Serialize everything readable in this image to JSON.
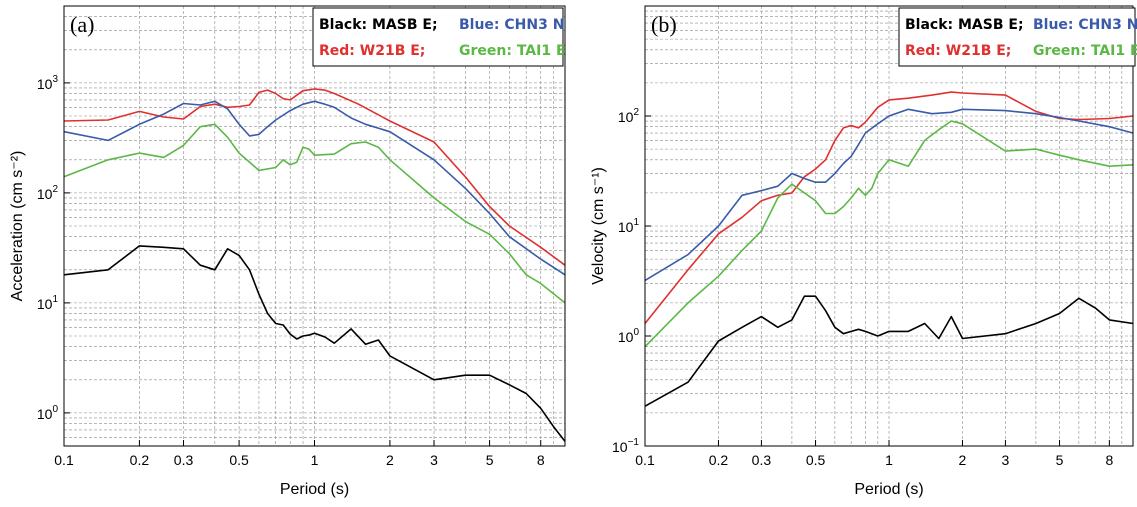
{
  "chart_data": [
    {
      "type": "line",
      "panel": "(a)",
      "xlabel": "Period (s)",
      "ylabel": "Acceleration (cm s⁻²)",
      "x_scale": "log",
      "y_scale": "log",
      "xlim": [
        0.1,
        10
      ],
      "ylim": [
        0.5,
        5000
      ],
      "grid": true,
      "x_ticks": [
        {
          "value": 0.1,
          "label": "0.1"
        },
        {
          "value": 0.2,
          "label": "0.2"
        },
        {
          "value": 0.3,
          "label": "0.3"
        },
        {
          "value": 0.5,
          "label": "0.5"
        },
        {
          "value": 1,
          "label": "1"
        },
        {
          "value": 2,
          "label": "2"
        },
        {
          "value": 3,
          "label": "3"
        },
        {
          "value": 5,
          "label": "5"
        },
        {
          "value": 8,
          "label": "8"
        }
      ],
      "y_ticks": [
        {
          "value": 1,
          "base": "10",
          "exp": "0"
        },
        {
          "value": 10,
          "base": "10",
          "exp": "1"
        },
        {
          "value": 100,
          "base": "10",
          "exp": "2"
        },
        {
          "value": 1000,
          "base": "10",
          "exp": "3"
        }
      ],
      "legend": {
        "placement": "top-right",
        "rows": [
          [
            {
              "text": "Black: MASB E;",
              "color": "#000000"
            },
            {
              "text": "Blue: CHN3 N",
              "color": "#3a5ba9"
            }
          ],
          [
            {
              "text": "Red: W21B E;",
              "color": "#e0302f"
            },
            {
              "text": "Green: TAI1 E",
              "color": "#5cb846"
            }
          ]
        ]
      },
      "series": [
        {
          "color": "#e0302f",
          "points": [
            [
              0.1,
              450
            ],
            [
              0.15,
              460
            ],
            [
              0.2,
              550
            ],
            [
              0.25,
              490
            ],
            [
              0.3,
              470
            ],
            [
              0.35,
              610
            ],
            [
              0.4,
              640
            ],
            [
              0.45,
              600
            ],
            [
              0.5,
              610
            ],
            [
              0.55,
              630
            ],
            [
              0.6,
              820
            ],
            [
              0.65,
              860
            ],
            [
              0.7,
              800
            ],
            [
              0.75,
              720
            ],
            [
              0.8,
              700
            ],
            [
              0.9,
              850
            ],
            [
              1.0,
              880
            ],
            [
              1.1,
              860
            ],
            [
              1.2,
              800
            ],
            [
              1.5,
              640
            ],
            [
              2,
              450
            ],
            [
              3,
              290
            ],
            [
              4,
              140
            ],
            [
              5,
              75
            ],
            [
              6,
              50
            ],
            [
              8,
              32
            ],
            [
              10,
              22
            ]
          ]
        },
        {
          "color": "#3a5ba9",
          "points": [
            [
              0.1,
              360
            ],
            [
              0.15,
              300
            ],
            [
              0.2,
              420
            ],
            [
              0.25,
              520
            ],
            [
              0.3,
              650
            ],
            [
              0.35,
              630
            ],
            [
              0.4,
              680
            ],
            [
              0.45,
              580
            ],
            [
              0.5,
              420
            ],
            [
              0.55,
              330
            ],
            [
              0.6,
              340
            ],
            [
              0.65,
              400
            ],
            [
              0.7,
              460
            ],
            [
              0.8,
              560
            ],
            [
              0.9,
              640
            ],
            [
              1.0,
              680
            ],
            [
              1.1,
              640
            ],
            [
              1.2,
              600
            ],
            [
              1.4,
              480
            ],
            [
              1.6,
              420
            ],
            [
              2,
              360
            ],
            [
              3,
              200
            ],
            [
              4,
              110
            ],
            [
              5,
              65
            ],
            [
              6,
              40
            ],
            [
              8,
              25
            ],
            [
              10,
              18
            ]
          ]
        },
        {
          "color": "#5cb846",
          "points": [
            [
              0.1,
              140
            ],
            [
              0.15,
              200
            ],
            [
              0.2,
              230
            ],
            [
              0.25,
              210
            ],
            [
              0.3,
              270
            ],
            [
              0.35,
              400
            ],
            [
              0.4,
              420
            ],
            [
              0.45,
              320
            ],
            [
              0.5,
              230
            ],
            [
              0.6,
              160
            ],
            [
              0.7,
              170
            ],
            [
              0.75,
              200
            ],
            [
              0.8,
              180
            ],
            [
              0.85,
              190
            ],
            [
              0.9,
              260
            ],
            [
              0.95,
              250
            ],
            [
              1.0,
              220
            ],
            [
              1.2,
              225
            ],
            [
              1.4,
              280
            ],
            [
              1.6,
              290
            ],
            [
              1.8,
              260
            ],
            [
              2,
              200
            ],
            [
              3,
              90
            ],
            [
              4,
              55
            ],
            [
              5,
              42
            ],
            [
              6,
              28
            ],
            [
              7,
              18
            ],
            [
              8,
              15
            ],
            [
              10,
              10
            ]
          ]
        },
        {
          "color": "#000000",
          "points": [
            [
              0.1,
              18
            ],
            [
              0.15,
              20
            ],
            [
              0.2,
              33
            ],
            [
              0.25,
              32
            ],
            [
              0.3,
              31
            ],
            [
              0.35,
              22
            ],
            [
              0.4,
              20
            ],
            [
              0.45,
              31
            ],
            [
              0.5,
              27
            ],
            [
              0.55,
              20
            ],
            [
              0.6,
              12
            ],
            [
              0.65,
              8
            ],
            [
              0.7,
              6.5
            ],
            [
              0.75,
              6.3
            ],
            [
              0.8,
              5.2
            ],
            [
              0.85,
              4.7
            ],
            [
              0.9,
              5
            ],
            [
              0.95,
              5.1
            ],
            [
              1.0,
              5.3
            ],
            [
              1.1,
              4.9
            ],
            [
              1.2,
              4.3
            ],
            [
              1.4,
              5.8
            ],
            [
              1.6,
              4.2
            ],
            [
              1.8,
              4.6
            ],
            [
              2,
              3.3
            ],
            [
              3,
              2
            ],
            [
              4,
              2.2
            ],
            [
              5,
              2.2
            ],
            [
              6,
              1.8
            ],
            [
              7,
              1.5
            ],
            [
              8,
              1.1
            ],
            [
              9,
              0.75
            ],
            [
              10,
              0.55
            ]
          ]
        }
      ]
    },
    {
      "type": "line",
      "panel": "(b)",
      "xlabel": "Period (s)",
      "ylabel": "Velocity (cm s⁻¹)",
      "x_scale": "log",
      "y_scale": "log",
      "xlim": [
        0.1,
        10
      ],
      "ylim": [
        0.1,
        1000
      ],
      "grid": true,
      "x_ticks": [
        {
          "value": 0.1,
          "label": "0.1"
        },
        {
          "value": 0.2,
          "label": "0.2"
        },
        {
          "value": 0.3,
          "label": "0.3"
        },
        {
          "value": 0.5,
          "label": "0.5"
        },
        {
          "value": 1,
          "label": "1"
        },
        {
          "value": 2,
          "label": "2"
        },
        {
          "value": 3,
          "label": "3"
        },
        {
          "value": 5,
          "label": "5"
        },
        {
          "value": 8,
          "label": "8"
        }
      ],
      "y_ticks": [
        {
          "value": 0.1,
          "base": "10",
          "exp": "−1"
        },
        {
          "value": 1,
          "base": "10",
          "exp": "0"
        },
        {
          "value": 10,
          "base": "10",
          "exp": "1"
        },
        {
          "value": 100,
          "base": "10",
          "exp": "2"
        }
      ],
      "legend": {
        "placement": "top-right",
        "rows": [
          [
            {
              "text": "Black: MASB E;",
              "color": "#000000"
            },
            {
              "text": "Blue: CHN3 N",
              "color": "#3a5ba9"
            }
          ],
          [
            {
              "text": "Red: W21B E;",
              "color": "#e0302f"
            },
            {
              "text": "Green: TAI1 E",
              "color": "#5cb846"
            }
          ]
        ]
      },
      "series": [
        {
          "color": "#e0302f",
          "points": [
            [
              0.1,
              1.3
            ],
            [
              0.15,
              4
            ],
            [
              0.2,
              8.5
            ],
            [
              0.25,
              12
            ],
            [
              0.3,
              17
            ],
            [
              0.35,
              19
            ],
            [
              0.4,
              20
            ],
            [
              0.45,
              28
            ],
            [
              0.5,
              33
            ],
            [
              0.55,
              40
            ],
            [
              0.6,
              60
            ],
            [
              0.65,
              78
            ],
            [
              0.7,
              82
            ],
            [
              0.75,
              78
            ],
            [
              0.8,
              88
            ],
            [
              0.9,
              120
            ],
            [
              1.0,
              140
            ],
            [
              1.2,
              145
            ],
            [
              1.5,
              155
            ],
            [
              1.8,
              165
            ],
            [
              2,
              162
            ],
            [
              3,
              155
            ],
            [
              4,
              110
            ],
            [
              5,
              95
            ],
            [
              6,
              93
            ],
            [
              7,
              94
            ],
            [
              8,
              95
            ],
            [
              10,
              100
            ]
          ]
        },
        {
          "color": "#3a5ba9",
          "points": [
            [
              0.1,
              3.2
            ],
            [
              0.15,
              5.5
            ],
            [
              0.2,
              10
            ],
            [
              0.25,
              19
            ],
            [
              0.3,
              21
            ],
            [
              0.35,
              23
            ],
            [
              0.4,
              30
            ],
            [
              0.45,
              27
            ],
            [
              0.5,
              25
            ],
            [
              0.55,
              25
            ],
            [
              0.6,
              30
            ],
            [
              0.65,
              37
            ],
            [
              0.7,
              43
            ],
            [
              0.75,
              55
            ],
            [
              0.8,
              70
            ],
            [
              0.9,
              85
            ],
            [
              1.0,
              100
            ],
            [
              1.2,
              115
            ],
            [
              1.5,
              105
            ],
            [
              1.8,
              108
            ],
            [
              2,
              115
            ],
            [
              3,
              112
            ],
            [
              4,
              105
            ],
            [
              5,
              97
            ],
            [
              6,
              90
            ],
            [
              8,
              80
            ],
            [
              10,
              70
            ]
          ]
        },
        {
          "color": "#5cb846",
          "points": [
            [
              0.1,
              0.8
            ],
            [
              0.15,
              2
            ],
            [
              0.2,
              3.5
            ],
            [
              0.25,
              6
            ],
            [
              0.3,
              9
            ],
            [
              0.35,
              18
            ],
            [
              0.4,
              24
            ],
            [
              0.45,
              20
            ],
            [
              0.5,
              17
            ],
            [
              0.55,
              13
            ],
            [
              0.6,
              13
            ],
            [
              0.65,
              15
            ],
            [
              0.7,
              18
            ],
            [
              0.75,
              22
            ],
            [
              0.8,
              19
            ],
            [
              0.85,
              22
            ],
            [
              0.9,
              30
            ],
            [
              1.0,
              40
            ],
            [
              1.2,
              35
            ],
            [
              1.4,
              60
            ],
            [
              1.6,
              75
            ],
            [
              1.8,
              90
            ],
            [
              2,
              85
            ],
            [
              3,
              48
            ],
            [
              4,
              50
            ],
            [
              5,
              44
            ],
            [
              6,
              40
            ],
            [
              8,
              35
            ],
            [
              10,
              36
            ]
          ]
        },
        {
          "color": "#000000",
          "points": [
            [
              0.1,
              0.23
            ],
            [
              0.15,
              0.38
            ],
            [
              0.2,
              0.9
            ],
            [
              0.25,
              1.2
            ],
            [
              0.3,
              1.5
            ],
            [
              0.35,
              1.2
            ],
            [
              0.4,
              1.4
            ],
            [
              0.45,
              2.3
            ],
            [
              0.5,
              2.3
            ],
            [
              0.55,
              1.7
            ],
            [
              0.6,
              1.2
            ],
            [
              0.65,
              1.05
            ],
            [
              0.7,
              1.1
            ],
            [
              0.75,
              1.15
            ],
            [
              0.8,
              1.1
            ],
            [
              0.9,
              1.0
            ],
            [
              1.0,
              1.1
            ],
            [
              1.2,
              1.1
            ],
            [
              1.4,
              1.3
            ],
            [
              1.6,
              0.95
            ],
            [
              1.8,
              1.5
            ],
            [
              2,
              0.95
            ],
            [
              3,
              1.05
            ],
            [
              4,
              1.3
            ],
            [
              5,
              1.6
            ],
            [
              6,
              2.2
            ],
            [
              7,
              1.8
            ],
            [
              8,
              1.4
            ],
            [
              10,
              1.3
            ]
          ]
        }
      ]
    }
  ]
}
